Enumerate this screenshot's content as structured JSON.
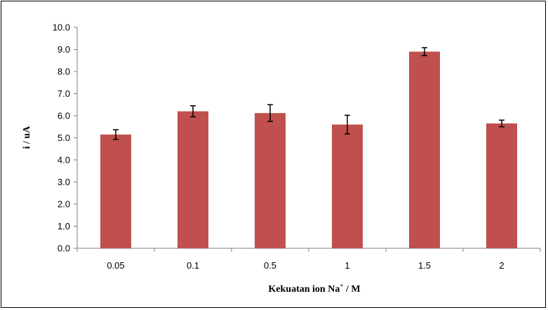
{
  "chart_data": {
    "type": "bar",
    "categories": [
      "0.05",
      "0.1",
      "0.5",
      "1",
      "1.5",
      "2"
    ],
    "values": [
      5.15,
      6.2,
      6.12,
      5.6,
      8.9,
      5.65
    ],
    "errors": [
      0.22,
      0.25,
      0.38,
      0.42,
      0.18,
      0.15
    ],
    "xlabel": "Kekuatan ion Na",
    "xlabel_sup": "+",
    "xlabel_unit": " / M",
    "ylabel": "i / uA",
    "ylim": [
      0,
      10
    ],
    "yticks": [
      "0.0",
      "1.0",
      "2.0",
      "3.0",
      "4.0",
      "5.0",
      "6.0",
      "7.0",
      "8.0",
      "9.0",
      "10.0"
    ],
    "bar_color": "#c0504d",
    "grid": false,
    "legend": "none"
  }
}
